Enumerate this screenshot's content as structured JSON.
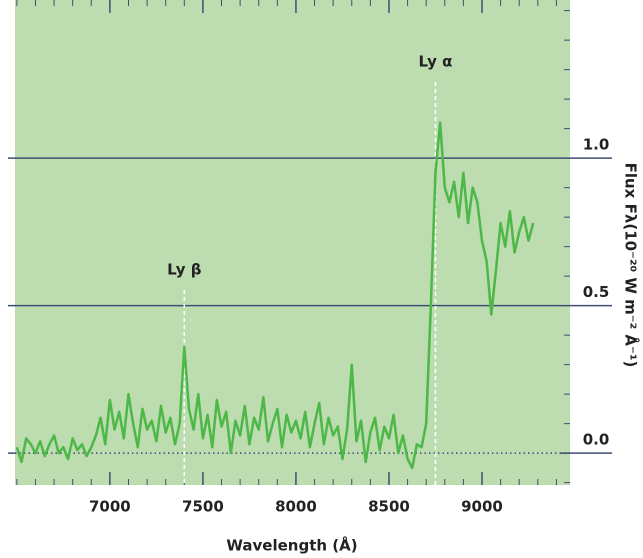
{
  "chart_data": {
    "type": "line",
    "x_label": "Wavelength (Å)",
    "y_label": "Flux Fλ(10⁻²⁰ W m⁻² Å⁻¹)",
    "xlim": [
      6490,
      9473
    ],
    "ylim": [
      -0.108,
      1.536
    ],
    "xticks": [
      7000,
      7500,
      8000,
      8500,
      9000
    ],
    "yticks": [
      {
        "value": 0,
        "label": "0.0"
      },
      {
        "value": 0.5,
        "label": "0.5"
      },
      {
        "value": 1,
        "label": "1.0"
      }
    ],
    "background": "#bddcb0",
    "grid_color": "#3d4f72",
    "annotations": [
      {
        "text": "Ly β",
        "x": 7400
      },
      {
        "text": "Ly α",
        "x": 8750
      }
    ],
    "series": [
      {
        "color": "#4db848",
        "x": [
          6500,
          6525,
          6550,
          6575,
          6600,
          6625,
          6650,
          6675,
          6700,
          6725,
          6750,
          6775,
          6800,
          6825,
          6850,
          6875,
          6900,
          6925,
          6950,
          6975,
          7000,
          7025,
          7050,
          7075,
          7100,
          7125,
          7150,
          7175,
          7200,
          7225,
          7250,
          7275,
          7300,
          7325,
          7350,
          7375,
          7400,
          7425,
          7450,
          7475,
          7500,
          7525,
          7550,
          7575,
          7600,
          7625,
          7650,
          7675,
          7700,
          7725,
          7750,
          7775,
          7800,
          7825,
          7850,
          7875,
          7900,
          7925,
          7950,
          7975,
          8000,
          8025,
          8050,
          8075,
          8100,
          8125,
          8150,
          8175,
          8200,
          8225,
          8250,
          8275,
          8300,
          8325,
          8350,
          8375,
          8400,
          8425,
          8450,
          8475,
          8500,
          8525,
          8550,
          8575,
          8600,
          8625,
          8650,
          8675,
          8700,
          8725,
          8750,
          8775,
          8800,
          8825,
          8850,
          8875,
          8900,
          8925,
          8950,
          8975,
          9000,
          9025,
          9050,
          9075,
          9100,
          9125,
          9150,
          9175,
          9200,
          9225,
          9250,
          9275
        ],
        "values": [
          0.02,
          -0.03,
          0.05,
          0.03,
          0.0,
          0.04,
          -0.01,
          0.03,
          0.06,
          0.0,
          0.02,
          -0.02,
          0.05,
          0.01,
          0.03,
          -0.01,
          0.02,
          0.06,
          0.12,
          0.03,
          0.18,
          0.08,
          0.14,
          0.05,
          0.2,
          0.1,
          0.02,
          0.15,
          0.08,
          0.11,
          0.04,
          0.16,
          0.07,
          0.12,
          0.03,
          0.1,
          0.36,
          0.15,
          0.08,
          0.2,
          0.05,
          0.13,
          0.02,
          0.18,
          0.09,
          0.14,
          0.0,
          0.11,
          0.06,
          0.16,
          0.03,
          0.12,
          0.08,
          0.19,
          0.04,
          0.1,
          0.15,
          0.02,
          0.13,
          0.07,
          0.11,
          0.05,
          0.14,
          0.02,
          0.1,
          0.17,
          0.03,
          0.12,
          0.06,
          0.09,
          -0.02,
          0.08,
          0.3,
          0.04,
          0.11,
          -0.03,
          0.07,
          0.12,
          0.01,
          0.09,
          0.05,
          0.13,
          0.0,
          0.06,
          -0.02,
          -0.05,
          0.03,
          0.02,
          0.1,
          0.5,
          0.95,
          1.12,
          0.9,
          0.85,
          0.92,
          0.8,
          0.95,
          0.78,
          0.9,
          0.85,
          0.72,
          0.65,
          0.47,
          0.62,
          0.78,
          0.7,
          0.82,
          0.68,
          0.75,
          0.8,
          0.72,
          0.78
        ]
      }
    ]
  }
}
